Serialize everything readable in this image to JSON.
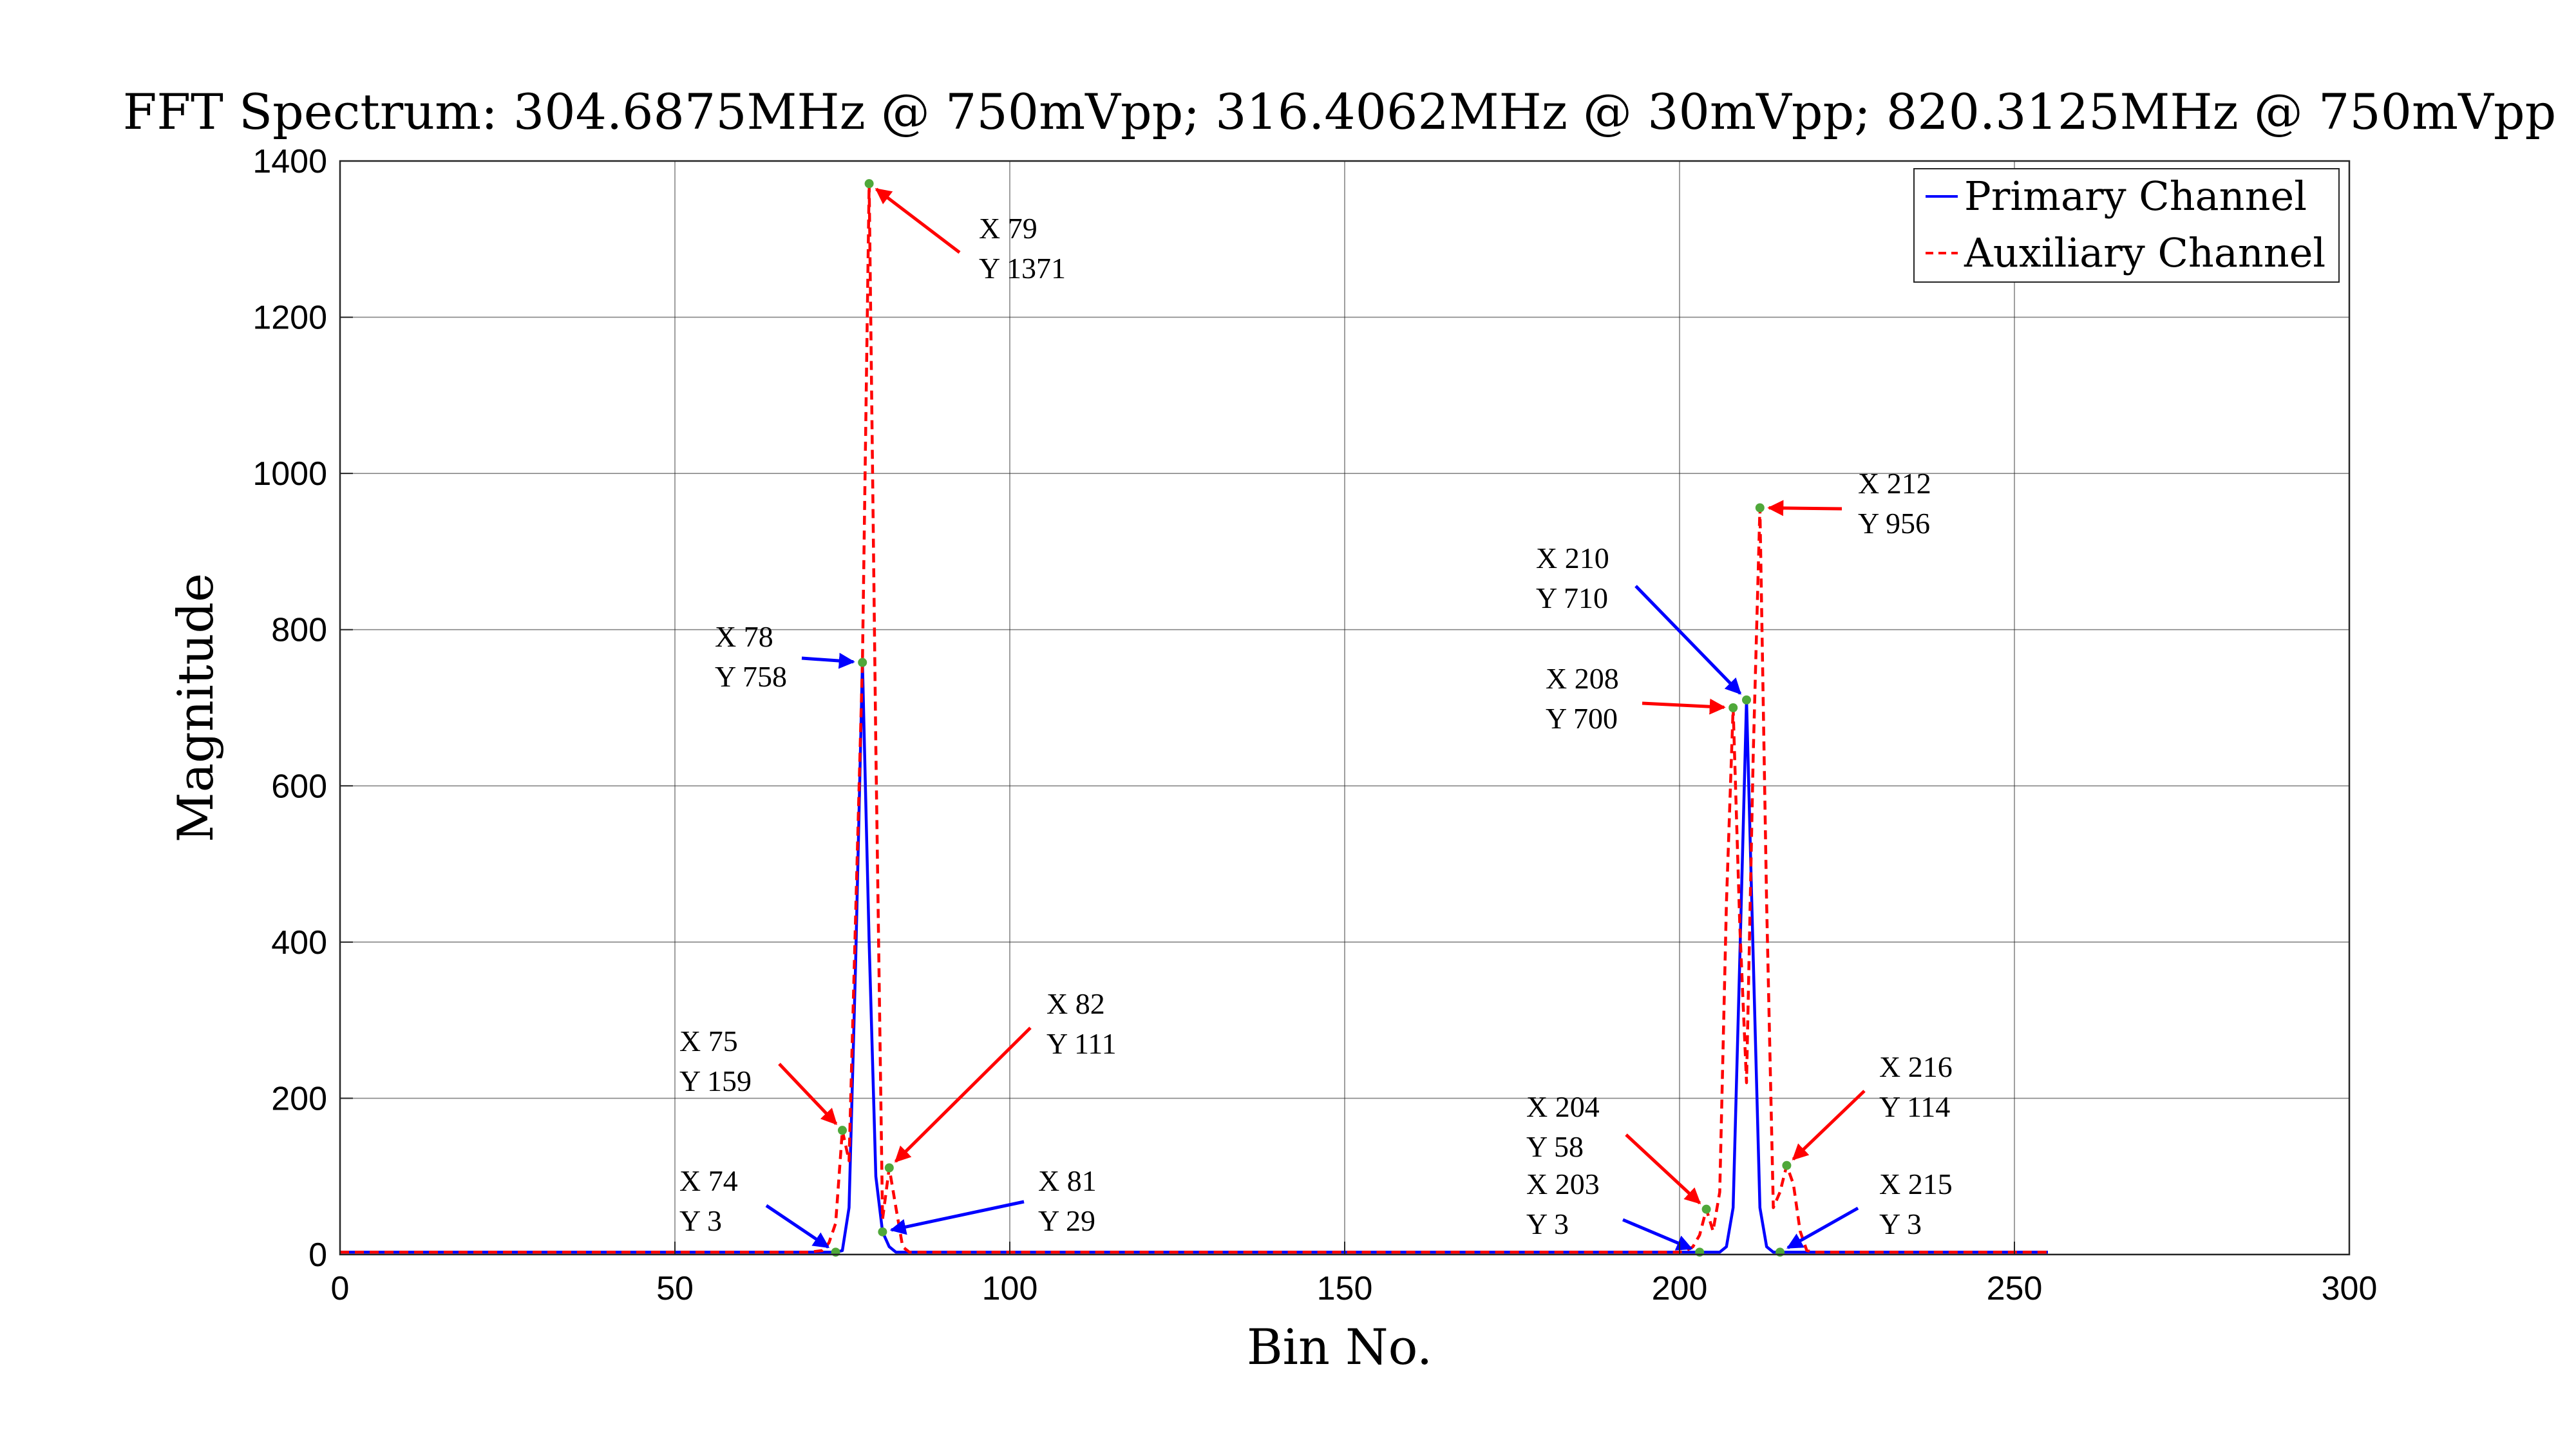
{
  "chart_data": {
    "type": "line",
    "title": "FFT Spectrum: 304.6875MHz @ 750mVpp; 316.4062MHz @ 30mVpp; 820.3125MHz @ 750mVpp",
    "xlabel": "Bin No.",
    "ylabel": "Magnitude",
    "xlim": [
      0,
      300
    ],
    "ylim": [
      0,
      1400
    ],
    "xticks": [
      0,
      50,
      100,
      150,
      200,
      250,
      300
    ],
    "yticks": [
      0,
      200,
      400,
      600,
      800,
      1000,
      1200,
      1400
    ],
    "grid": true,
    "legend_position": "top-right",
    "series": [
      {
        "name": "Primary Channel",
        "color": "#0000ff",
        "style": "solid",
        "points": [
          [
            0,
            3
          ],
          [
            72,
            3
          ],
          [
            73,
            3
          ],
          [
            74,
            3
          ],
          [
            75,
            5
          ],
          [
            76,
            60
          ],
          [
            77,
            380
          ],
          [
            78,
            758
          ],
          [
            79,
            400
          ],
          [
            80,
            100
          ],
          [
            81,
            29
          ],
          [
            82,
            10
          ],
          [
            83,
            3
          ],
          [
            85,
            3
          ],
          [
            200,
            3
          ],
          [
            203,
            3
          ],
          [
            206,
            3
          ],
          [
            207,
            10
          ],
          [
            208,
            60
          ],
          [
            209,
            380
          ],
          [
            210,
            710
          ],
          [
            211,
            380
          ],
          [
            212,
            60
          ],
          [
            213,
            10
          ],
          [
            214,
            3
          ],
          [
            215,
            3
          ],
          [
            216,
            3
          ],
          [
            255,
            3
          ]
        ]
      },
      {
        "name": "Auxiliary Channel",
        "color": "#ff0000",
        "style": "dashed",
        "points": [
          [
            0,
            3
          ],
          [
            70,
            3
          ],
          [
            72,
            5
          ],
          [
            73,
            15
          ],
          [
            74,
            40
          ],
          [
            75,
            159
          ],
          [
            76,
            120
          ],
          [
            77,
            440
          ],
          [
            78,
            758
          ],
          [
            79,
            1371
          ],
          [
            80,
            650
          ],
          [
            81,
            45
          ],
          [
            82,
            111
          ],
          [
            83,
            60
          ],
          [
            84,
            10
          ],
          [
            85,
            3
          ],
          [
            200,
            3
          ],
          [
            201,
            5
          ],
          [
            202,
            10
          ],
          [
            203,
            25
          ],
          [
            204,
            58
          ],
          [
            205,
            30
          ],
          [
            206,
            80
          ],
          [
            207,
            450
          ],
          [
            208,
            700
          ],
          [
            209,
            420
          ],
          [
            210,
            220
          ],
          [
            211,
            640
          ],
          [
            212,
            956
          ],
          [
            213,
            450
          ],
          [
            214,
            60
          ],
          [
            215,
            80
          ],
          [
            216,
            114
          ],
          [
            217,
            90
          ],
          [
            218,
            30
          ],
          [
            219,
            5
          ],
          [
            220,
            3
          ],
          [
            255,
            3
          ]
        ]
      }
    ],
    "markers": [
      {
        "x": 79,
        "y": 1371,
        "xlabel": "X 79",
        "ylabel": "Y 1371",
        "color": "#ff0000"
      },
      {
        "x": 78,
        "y": 758,
        "xlabel": "X 78",
        "ylabel": "Y 758",
        "color": "#0000ff"
      },
      {
        "x": 75,
        "y": 159,
        "xlabel": "X 75",
        "ylabel": "Y 159",
        "color": "#ff0000"
      },
      {
        "x": 74,
        "y": 3,
        "xlabel": "X 74",
        "ylabel": "Y 3",
        "color": "#0000ff"
      },
      {
        "x": 82,
        "y": 111,
        "xlabel": "X 82",
        "ylabel": "Y 111",
        "color": "#ff0000"
      },
      {
        "x": 81,
        "y": 29,
        "xlabel": "X 81",
        "ylabel": "Y 29",
        "color": "#0000ff"
      },
      {
        "x": 212,
        "y": 956,
        "xlabel": "X 212",
        "ylabel": "Y 956",
        "color": "#ff0000"
      },
      {
        "x": 210,
        "y": 710,
        "xlabel": "X 210",
        "ylabel": "Y 710",
        "color": "#0000ff"
      },
      {
        "x": 208,
        "y": 700,
        "xlabel": "X 208",
        "ylabel": "Y 700",
        "color": "#ff0000"
      },
      {
        "x": 204,
        "y": 58,
        "xlabel": "X 204",
        "ylabel": "Y 58",
        "color": "#ff0000"
      },
      {
        "x": 203,
        "y": 3,
        "xlabel": "X 203",
        "ylabel": "Y 3",
        "color": "#0000ff"
      },
      {
        "x": 216,
        "y": 114,
        "xlabel": "X 216",
        "ylabel": "Y 114",
        "color": "#ff0000"
      },
      {
        "x": 215,
        "y": 3,
        "xlabel": "X 215",
        "ylabel": "Y 3",
        "color": "#0000ff"
      }
    ]
  }
}
